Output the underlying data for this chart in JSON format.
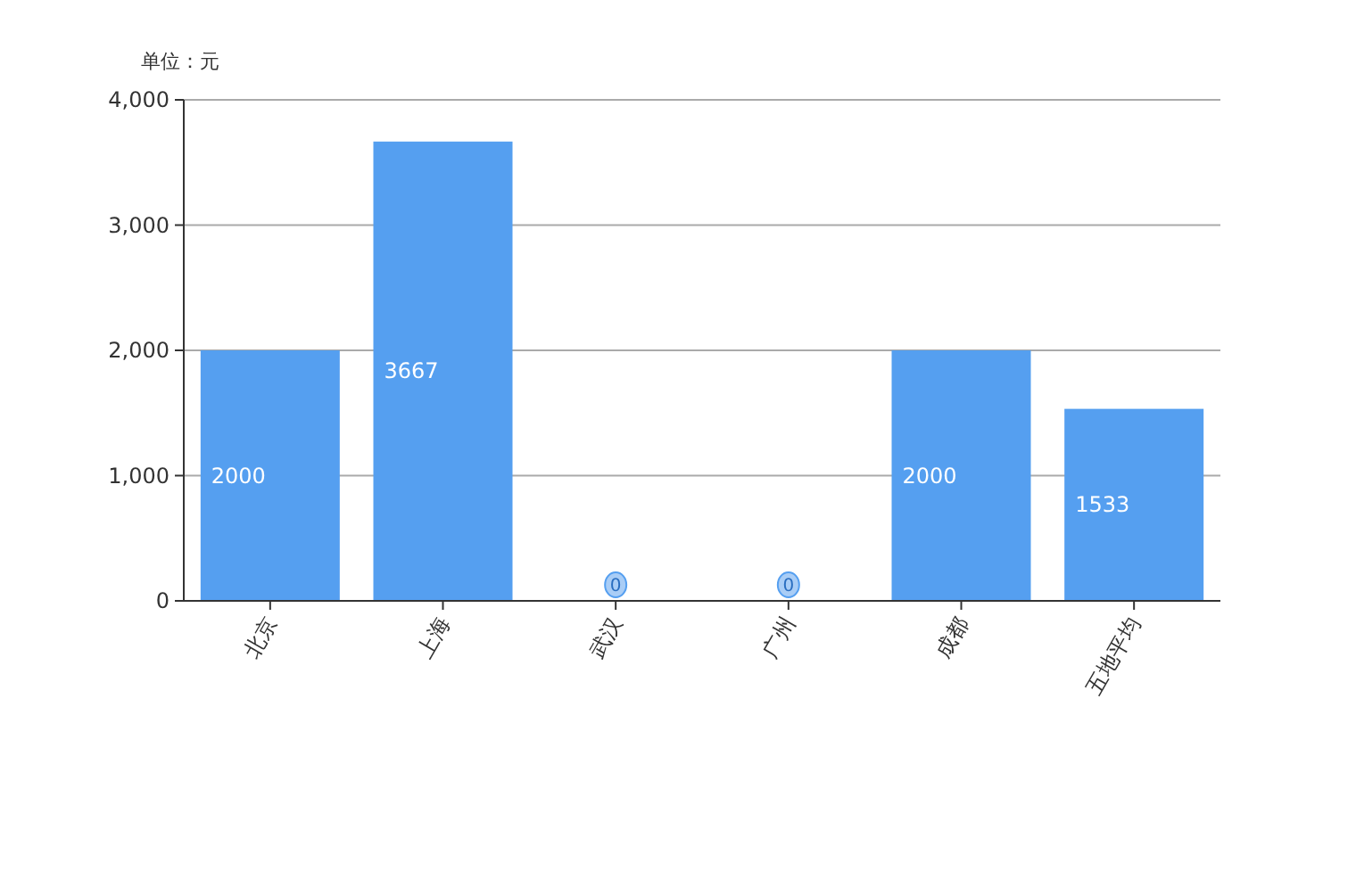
{
  "chart_data": {
    "type": "bar",
    "ylabel": "单位：元",
    "categories": [
      "北京",
      "上海",
      "武汉",
      "广州",
      "成都",
      "五地平均"
    ],
    "series": [
      {
        "color": "#559ff0",
        "values": [
          2000,
          3667,
          0,
          0,
          2000,
          1533
        ],
        "value_labels": [
          "2000",
          "3667",
          "0",
          "0",
          "2000",
          "1533"
        ]
      }
    ],
    "ylim": [
      0,
      4000
    ],
    "yticks": [
      0,
      {
        "value": 1000,
        "label": "1,000"
      },
      {
        "value": 2000,
        "label": "2,000"
      },
      {
        "value": 3000,
        "label": "3,000"
      },
      {
        "value": 4000,
        "label": "4,000"
      }
    ],
    "grid": "y"
  }
}
